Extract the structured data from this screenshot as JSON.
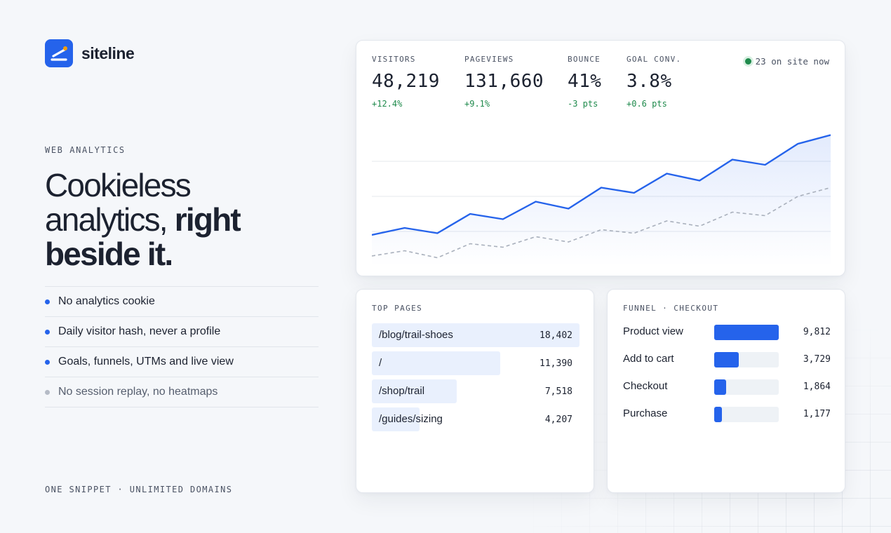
{
  "brand": {
    "name": "siteline",
    "accent": "#2563eb"
  },
  "hero": {
    "eyebrow": "WEB ANALYTICS",
    "line1": "Cookieless",
    "line2_regular": "analytics, ",
    "line2_bold": "right",
    "line3_bold": "beside it."
  },
  "features": [
    {
      "text": "No analytics cookie",
      "muted": false
    },
    {
      "text": "Daily visitor hash, never a profile",
      "muted": false
    },
    {
      "text": "Goals, funnels, UTMs and live view",
      "muted": false
    },
    {
      "text": "No session replay, no heatmaps",
      "muted": true
    }
  ],
  "footnote": "ONE SNIPPET · UNLIMITED DOMAINS",
  "kpis": [
    {
      "label": "VISITORS",
      "value": "48,219",
      "delta": "+12.4%"
    },
    {
      "label": "PAGEVIEWS",
      "value": "131,660",
      "delta": "+9.1%"
    },
    {
      "label": "BOUNCE",
      "value": "41%",
      "delta": "-3 pts"
    },
    {
      "label": "GOAL CONV.",
      "value": "3.8%",
      "delta": "+0.6 pts"
    }
  ],
  "live": {
    "text": "23 on site now",
    "color": "#1f8a4c"
  },
  "chart_data": {
    "type": "line",
    "x": [
      1,
      2,
      3,
      4,
      5,
      6,
      7,
      8,
      9,
      10,
      11,
      12,
      13,
      14,
      15
    ],
    "series": [
      {
        "values": [
          18,
          22,
          19,
          30,
          27,
          37,
          33,
          45,
          42,
          53,
          49,
          61,
          58,
          70,
          75
        ],
        "style": "solid",
        "color": "#2563eb"
      },
      {
        "values": [
          6,
          9,
          5,
          13,
          11,
          17,
          14,
          21,
          19,
          26,
          23,
          31,
          29,
          40,
          45
        ],
        "style": "dashed",
        "color": "#a9b0bc"
      }
    ],
    "ylim": [
      0,
      80
    ],
    "grid": true,
    "legend": "none"
  },
  "top_pages": {
    "title": "TOP PAGES",
    "rows": [
      {
        "path": "/blog/trail-shoes",
        "count": "18,402",
        "value": 18402
      },
      {
        "path": "/",
        "count": "11,390",
        "value": 11390
      },
      {
        "path": "/shop/trail",
        "count": "7,518",
        "value": 7518
      },
      {
        "path": "/guides/sizing",
        "count": "4,207",
        "value": 4207
      }
    ]
  },
  "funnel": {
    "title": "FUNNEL · CHECKOUT",
    "steps": [
      {
        "label": "Product view",
        "count": "9,812",
        "value": 9812
      },
      {
        "label": "Add to cart",
        "count": "3,729",
        "value": 3729
      },
      {
        "label": "Checkout",
        "count": "1,864",
        "value": 1864
      },
      {
        "label": "Purchase",
        "count": "1,177",
        "value": 1177
      }
    ]
  }
}
